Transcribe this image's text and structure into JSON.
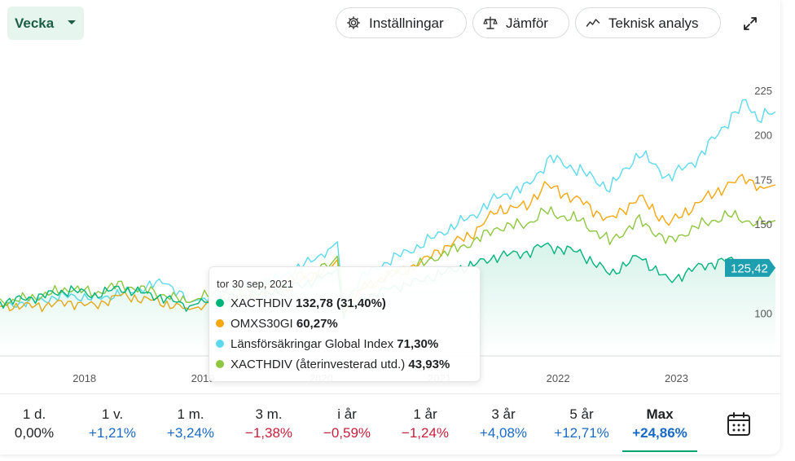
{
  "toolbar": {
    "period": "Vecka",
    "settings_label": "Inställningar",
    "compare_label": "Jämför",
    "tech_label": "Teknisk analys"
  },
  "tooltip": {
    "date": "tor 30 sep, 2021",
    "rows": [
      {
        "name": "XACTHDIV",
        "value": "132,78 (31,40%)",
        "color": "#00b37a"
      },
      {
        "name": "OMXS30GI",
        "value": "60,27%",
        "color": "#f5a70f"
      },
      {
        "name": "Länsförsäkringar Global Index",
        "value": "71,30%",
        "color": "#5dd9ee"
      },
      {
        "name": "XACTHDIV (återinvesterad utd.)",
        "value": "43,93%",
        "color": "#8ec63f"
      }
    ]
  },
  "last_price_label": "125,42",
  "ranges": [
    {
      "name": "1 d.",
      "value": "0,00%",
      "sign": "zero"
    },
    {
      "name": "1 v.",
      "value": "+1,21%",
      "sign": "pos"
    },
    {
      "name": "1 m.",
      "value": "+3,24%",
      "sign": "pos"
    },
    {
      "name": "3 m.",
      "value": "−1,38%",
      "sign": "neg"
    },
    {
      "name": "i år",
      "value": "−0,59%",
      "sign": "neg"
    },
    {
      "name": "1 år",
      "value": "−1,24%",
      "sign": "neg"
    },
    {
      "name": "3 år",
      "value": "+4,08%",
      "sign": "pos"
    },
    {
      "name": "5 år",
      "value": "+12,71%",
      "sign": "pos"
    },
    {
      "name": "Max",
      "value": "+24,86%",
      "sign": "pos",
      "active": true
    }
  ],
  "chart_data": {
    "type": "line",
    "x_ticks": [
      "2018",
      "2019",
      "2020",
      "2021",
      "2022",
      "2023"
    ],
    "y_ticks": [
      100,
      150,
      175,
      200,
      225
    ],
    "y_tick_labels": [
      "100",
      "150",
      "175",
      "200",
      "225"
    ],
    "ylim": [
      76,
      230
    ],
    "xlim": [
      2017.3,
      2023.85
    ],
    "grid": false,
    "series": [
      {
        "name": "Länsförsäkringar Global Index",
        "color": "#5dd9ee",
        "points": [
          [
            2017.3,
            104
          ],
          [
            2017.6,
            107
          ],
          [
            2017.9,
            110
          ],
          [
            2018.1,
            108
          ],
          [
            2018.4,
            112
          ],
          [
            2018.7,
            118
          ],
          [
            2018.9,
            106
          ],
          [
            2019.0,
            108
          ],
          [
            2019.3,
            114
          ],
          [
            2019.6,
            118
          ],
          [
            2019.9,
            128
          ],
          [
            2020.1,
            137
          ],
          [
            2020.15,
            140
          ],
          [
            2020.2,
            105
          ],
          [
            2020.35,
            120
          ],
          [
            2020.6,
            130
          ],
          [
            2020.85,
            138
          ],
          [
            2021.0,
            144
          ],
          [
            2021.3,
            155
          ],
          [
            2021.5,
            165
          ],
          [
            2021.75,
            171
          ],
          [
            2021.95,
            187
          ],
          [
            2022.2,
            180
          ],
          [
            2022.45,
            170
          ],
          [
            2022.7,
            190
          ],
          [
            2022.95,
            176
          ],
          [
            2023.2,
            187
          ],
          [
            2023.45,
            208
          ],
          [
            2023.6,
            218
          ],
          [
            2023.7,
            210
          ],
          [
            2023.85,
            213
          ]
        ]
      },
      {
        "name": "OMXS30GI",
        "color": "#f5a70f",
        "points": [
          [
            2017.3,
            104
          ],
          [
            2017.6,
            104
          ],
          [
            2017.9,
            106
          ],
          [
            2018.1,
            104
          ],
          [
            2018.3,
            110
          ],
          [
            2018.6,
            107
          ],
          [
            2018.9,
            102
          ],
          [
            2019.0,
            104
          ],
          [
            2019.3,
            108
          ],
          [
            2019.6,
            112
          ],
          [
            2019.9,
            119
          ],
          [
            2020.1,
            126
          ],
          [
            2020.15,
            130
          ],
          [
            2020.2,
            100
          ],
          [
            2020.35,
            113
          ],
          [
            2020.6,
            122
          ],
          [
            2020.85,
            128
          ],
          [
            2021.0,
            135
          ],
          [
            2021.3,
            145
          ],
          [
            2021.5,
            158
          ],
          [
            2021.75,
            160
          ],
          [
            2021.9,
            172
          ],
          [
            2022.2,
            163
          ],
          [
            2022.45,
            152
          ],
          [
            2022.7,
            165
          ],
          [
            2022.95,
            150
          ],
          [
            2023.2,
            162
          ],
          [
            2023.45,
            172
          ],
          [
            2023.6,
            176
          ],
          [
            2023.75,
            170
          ],
          [
            2023.85,
            172
          ]
        ]
      },
      {
        "name": "XACTHDIV (återinvesterad utd.)",
        "color": "#8ec63f",
        "points": [
          [
            2017.3,
            106
          ],
          [
            2017.6,
            109
          ],
          [
            2017.9,
            114
          ],
          [
            2018.1,
            111
          ],
          [
            2018.3,
            116
          ],
          [
            2018.6,
            112
          ],
          [
            2018.9,
            106
          ],
          [
            2019.0,
            109
          ],
          [
            2019.3,
            112
          ],
          [
            2019.6,
            116
          ],
          [
            2019.9,
            122
          ],
          [
            2020.1,
            128
          ],
          [
            2020.15,
            132
          ],
          [
            2020.2,
            104
          ],
          [
            2020.35,
            114
          ],
          [
            2020.6,
            121
          ],
          [
            2020.85,
            127
          ],
          [
            2021.0,
            132
          ],
          [
            2021.3,
            140
          ],
          [
            2021.5,
            148
          ],
          [
            2021.75,
            150
          ],
          [
            2021.9,
            157
          ],
          [
            2022.2,
            152
          ],
          [
            2022.45,
            140
          ],
          [
            2022.7,
            152
          ],
          [
            2022.95,
            140
          ],
          [
            2023.2,
            149
          ],
          [
            2023.45,
            155
          ],
          [
            2023.6,
            152
          ],
          [
            2023.75,
            150
          ],
          [
            2023.85,
            152
          ]
        ]
      },
      {
        "name": "XACTHDIV",
        "color": "#00b37a",
        "points": [
          [
            2017.3,
            106
          ],
          [
            2017.6,
            109
          ],
          [
            2017.9,
            113
          ],
          [
            2018.1,
            110
          ],
          [
            2018.3,
            114
          ],
          [
            2018.6,
            110
          ],
          [
            2018.9,
            104
          ],
          [
            2019.0,
            106
          ],
          [
            2019.3,
            109
          ],
          [
            2019.6,
            112
          ],
          [
            2019.9,
            117
          ],
          [
            2020.1,
            122
          ],
          [
            2020.15,
            125
          ],
          [
            2020.2,
            100
          ],
          [
            2020.35,
            108
          ],
          [
            2020.6,
            114
          ],
          [
            2020.85,
            118
          ],
          [
            2021.0,
            122
          ],
          [
            2021.3,
            127
          ],
          [
            2021.5,
            132
          ],
          [
            2021.75,
            134
          ],
          [
            2021.9,
            138
          ],
          [
            2022.2,
            134
          ],
          [
            2022.45,
            122
          ],
          [
            2022.7,
            132
          ],
          [
            2022.95,
            118
          ],
          [
            2023.2,
            126
          ],
          [
            2023.45,
            130
          ],
          [
            2023.6,
            127
          ],
          [
            2023.75,
            125
          ],
          [
            2023.85,
            125.42
          ]
        ]
      }
    ]
  }
}
